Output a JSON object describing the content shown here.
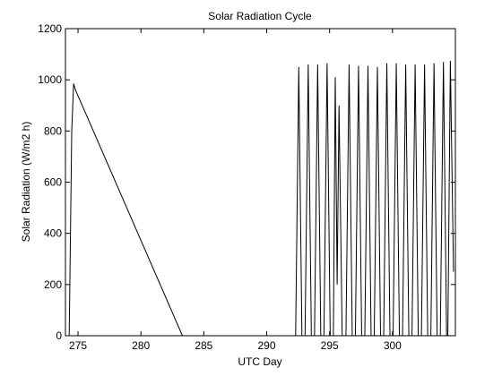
{
  "chart_data": {
    "type": "line",
    "title": "Solar Radiation Cycle",
    "xlabel": "UTC Day",
    "ylabel": "Solar Radiation (W/m2 h)",
    "xlim": [
      274,
      305
    ],
    "ylim": [
      0,
      1200
    ],
    "xticks": [
      275,
      280,
      285,
      290,
      295,
      300
    ],
    "yticks": [
      0,
      200,
      400,
      600,
      800,
      1000,
      1200
    ],
    "grid": false,
    "series": [
      {
        "color": "#000000",
        "points": [
          [
            274.3,
            0
          ],
          [
            274.5,
            800
          ],
          [
            274.65,
            985
          ],
          [
            274.8,
            960
          ],
          [
            283.3,
            0
          ],
          [
            292.3,
            0
          ],
          [
            292.55,
            1050
          ],
          [
            292.8,
            0
          ],
          [
            293.05,
            0
          ],
          [
            293.3,
            1060
          ],
          [
            293.55,
            0
          ],
          [
            293.8,
            0
          ],
          [
            294.05,
            1060
          ],
          [
            294.3,
            0
          ],
          [
            294.55,
            0
          ],
          [
            294.8,
            1065
          ],
          [
            295.05,
            0
          ],
          [
            295.3,
            0
          ],
          [
            295.45,
            1010
          ],
          [
            295.6,
            200
          ],
          [
            295.75,
            900
          ],
          [
            296.0,
            0
          ],
          [
            296.3,
            0
          ],
          [
            296.55,
            1060
          ],
          [
            296.8,
            0
          ],
          [
            297.05,
            0
          ],
          [
            297.3,
            1055
          ],
          [
            297.55,
            0
          ],
          [
            297.8,
            0
          ],
          [
            298.05,
            1055
          ],
          [
            298.3,
            0
          ],
          [
            298.55,
            0
          ],
          [
            298.8,
            1050
          ],
          [
            299.05,
            0
          ],
          [
            299.3,
            0
          ],
          [
            299.55,
            1065
          ],
          [
            299.8,
            0
          ],
          [
            300.05,
            0
          ],
          [
            300.3,
            1065
          ],
          [
            300.55,
            0
          ],
          [
            300.8,
            0
          ],
          [
            301.05,
            1060
          ],
          [
            301.3,
            0
          ],
          [
            301.55,
            0
          ],
          [
            301.8,
            1060
          ],
          [
            302.05,
            0
          ],
          [
            302.3,
            0
          ],
          [
            302.55,
            1060
          ],
          [
            302.8,
            0
          ],
          [
            303.05,
            0
          ],
          [
            303.3,
            1065
          ],
          [
            303.55,
            0
          ],
          [
            303.8,
            0
          ],
          [
            304.05,
            1070
          ],
          [
            304.3,
            0
          ],
          [
            304.4,
            0
          ],
          [
            304.6,
            1075
          ],
          [
            304.85,
            250
          ]
        ]
      }
    ]
  }
}
